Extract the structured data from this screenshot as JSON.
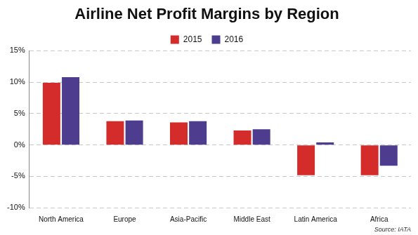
{
  "chart_data": {
    "type": "bar",
    "title": "Airline Net Profit Margins by Region",
    "annotations": [
      "Source: IATA"
    ],
    "categories": [
      "North America",
      "Europe",
      "Asia-Pacific",
      "Middle East",
      "Latin America",
      "Africa"
    ],
    "series": [
      {
        "name": "2015",
        "color": "#d42b2b",
        "values": [
          9.9,
          3.8,
          3.6,
          2.3,
          -4.8,
          -4.8
        ]
      },
      {
        "name": "2016",
        "color": "#4e3d8f",
        "values": [
          10.8,
          3.9,
          3.8,
          2.5,
          0.4,
          -3.3
        ]
      }
    ],
    "ylim": [
      -10,
      15
    ],
    "yticks": [
      {
        "value": -10,
        "label": "-10%"
      },
      {
        "value": -5,
        "label": "-5%"
      },
      {
        "value": 0,
        "label": "0%"
      },
      {
        "value": 5,
        "label": "5%"
      },
      {
        "value": 10,
        "label": "10%"
      },
      {
        "value": 15,
        "label": "15%"
      }
    ],
    "grid": true,
    "legend": "top"
  }
}
